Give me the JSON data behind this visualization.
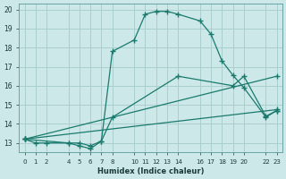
{
  "xlabel": "Humidex (Indice chaleur)",
  "ylabel": "",
  "xlim": [
    -0.5,
    23.5
  ],
  "ylim": [
    12.5,
    20.3
  ],
  "yticks": [
    13,
    14,
    15,
    16,
    17,
    18,
    19,
    20
  ],
  "xtick_positions": [
    0,
    1,
    2,
    4,
    5,
    6,
    7,
    8,
    10,
    11,
    12,
    13,
    14,
    16,
    17,
    18,
    19,
    20,
    22,
    23
  ],
  "xtick_labels": [
    "0",
    "1",
    "2",
    "4",
    "5",
    "6",
    "7",
    "8",
    "10",
    "11",
    "12",
    "13",
    "14",
    "16",
    "17",
    "18",
    "19",
    "20",
    "22",
    "23"
  ],
  "background_color": "#cce8e8",
  "grid_color": "#aacece",
  "line_color": "#1a7a6e",
  "series": [
    {
      "x": [
        0,
        1,
        2,
        4,
        5,
        6,
        7,
        8,
        10,
        11,
        12,
        13,
        14,
        16,
        17,
        18,
        19,
        20,
        22,
        23
      ],
      "y": [
        13.2,
        13.0,
        13.0,
        13.0,
        12.85,
        12.7,
        13.1,
        17.8,
        18.4,
        19.75,
        19.9,
        19.9,
        19.75,
        19.4,
        18.7,
        17.3,
        16.55,
        15.9,
        14.35,
        14.7
      ]
    },
    {
      "x": [
        0,
        4,
        5,
        6,
        7,
        8,
        14,
        19,
        20,
        22,
        23
      ],
      "y": [
        13.2,
        13.0,
        13.0,
        12.85,
        13.1,
        14.35,
        16.5,
        16.0,
        16.5,
        14.4,
        14.7
      ]
    },
    {
      "x": [
        0,
        23
      ],
      "y": [
        13.2,
        16.5
      ]
    },
    {
      "x": [
        0,
        23
      ],
      "y": [
        13.2,
        14.75
      ]
    }
  ]
}
